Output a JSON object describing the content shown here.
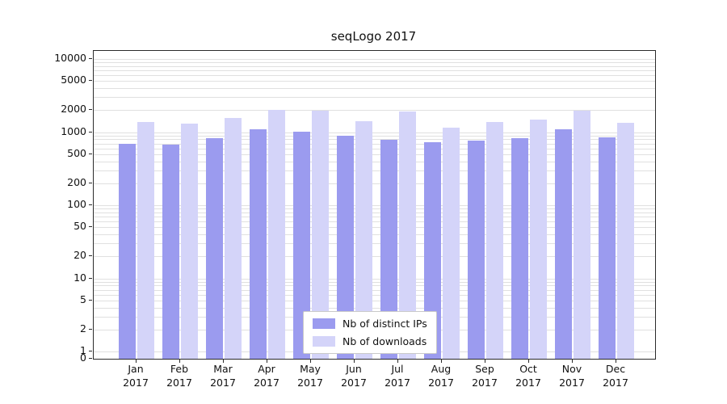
{
  "title": "seqLogo 2017",
  "legend": {
    "items": [
      {
        "label": "Nb of distinct IPs"
      },
      {
        "label": "Nb of downloads"
      }
    ]
  },
  "chart_data": {
    "type": "bar",
    "title": "seqLogo 2017",
    "xlabel": "",
    "ylabel": "",
    "yscale": "log",
    "ylim": [
      0,
      13000
    ],
    "grid": "horizontal",
    "legend_position": "lower-center",
    "year": "2017",
    "categories": [
      "Jan",
      "Feb",
      "Mar",
      "Apr",
      "May",
      "Jun",
      "Jul",
      "Aug",
      "Sep",
      "Oct",
      "Nov",
      "Dec"
    ],
    "yticks": [
      0,
      1,
      2,
      5,
      10,
      20,
      50,
      100,
      200,
      500,
      1000,
      2000,
      5000,
      10000
    ],
    "series": [
      {
        "name": "Nb of distinct IPs",
        "color": "#9b9bef",
        "values": [
          700,
          680,
          820,
          1080,
          1010,
          890,
          780,
          730,
          760,
          820,
          1080,
          840
        ]
      },
      {
        "name": "Nb of downloads",
        "color": "#d4d4f9",
        "values": [
          1380,
          1300,
          1550,
          2000,
          1950,
          1400,
          1900,
          1150,
          1380,
          1500,
          1950,
          1350
        ]
      }
    ]
  }
}
